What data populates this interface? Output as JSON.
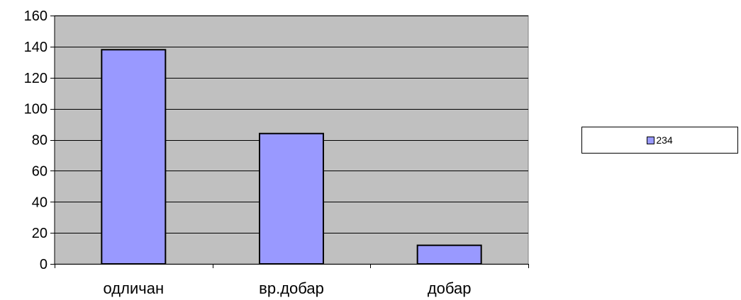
{
  "chart_data": {
    "type": "bar",
    "title": "",
    "xlabel": "",
    "ylabel": "",
    "categories": [
      "одличан",
      "вр.добар",
      "добар"
    ],
    "series": [
      {
        "name": "234",
        "values": [
          138,
          84,
          12
        ]
      }
    ],
    "ylim": [
      0,
      160
    ],
    "yticks": [
      0,
      20,
      40,
      60,
      80,
      100,
      120,
      140,
      160
    ],
    "grid": true,
    "legend_position": "right",
    "colors": {
      "bar_fill": "#9999ff",
      "plot_background": "#c0c0c0",
      "gridline": "#000000",
      "axis": "#000000"
    }
  }
}
